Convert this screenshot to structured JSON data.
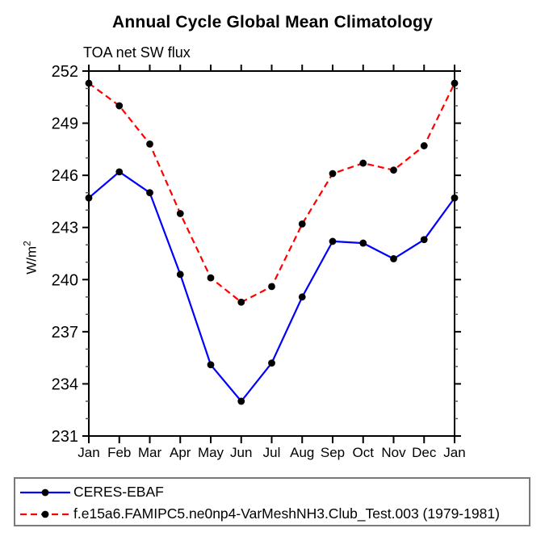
{
  "title": "Annual Cycle Global Mean Climatology",
  "subtitle": "TOA net SW flux",
  "ylabel": {
    "base": "W/m",
    "sup": "2",
    "full": "W/m²"
  },
  "chart_data": {
    "type": "line",
    "title": "Annual Cycle Global Mean Climatology",
    "subtitle": "TOA net SW flux",
    "xlabel": "",
    "ylabel": "W/m²",
    "categories": [
      "Jan",
      "Feb",
      "Mar",
      "Apr",
      "May",
      "Jun",
      "Jul",
      "Aug",
      "Sep",
      "Oct",
      "Nov",
      "Dec",
      "Jan"
    ],
    "series": [
      {
        "name": "CERES-EBAF",
        "color": "#0000ff",
        "line_style": "solid",
        "marker": "filled-circle",
        "marker_color": "#000000",
        "values": [
          244.7,
          246.2,
          245.0,
          240.3,
          235.1,
          233.0,
          235.2,
          239.0,
          242.2,
          242.1,
          241.2,
          242.3,
          244.7
        ]
      },
      {
        "name": "f.e15a6.FAMIPC5.ne0np4-VarMeshNH3.Club_Test.003 (1979-1981)",
        "color": "#ff0000",
        "line_style": "dashed",
        "marker": "filled-circle",
        "marker_color": "#000000",
        "values": [
          251.3,
          250.0,
          247.8,
          243.8,
          240.1,
          238.7,
          239.6,
          243.2,
          246.1,
          246.7,
          246.3,
          247.7,
          251.3
        ]
      }
    ],
    "ylim": [
      231,
      252
    ],
    "yticks": [
      231,
      234,
      237,
      240,
      243,
      246,
      249,
      252
    ],
    "ytick_minor_step": 1,
    "grid": false,
    "legend_position": "bottom-left-box"
  }
}
